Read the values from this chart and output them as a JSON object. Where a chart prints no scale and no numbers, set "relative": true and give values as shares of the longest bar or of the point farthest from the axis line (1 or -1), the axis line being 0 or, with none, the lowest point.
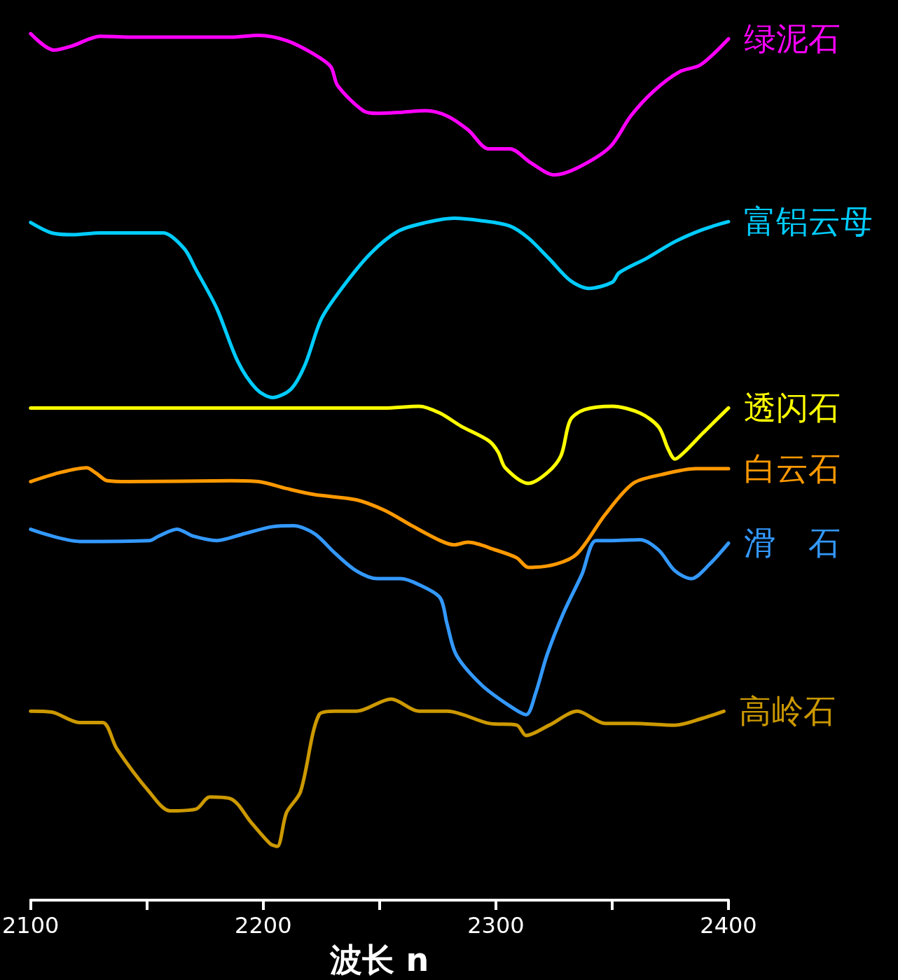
{
  "chart_data": {
    "type": "line",
    "relative": true,
    "xlabel": "波长 n",
    "xlim": [
      2100,
      2400
    ],
    "xticks": [
      2100,
      {
        "value": 2150,
        "label": null
      },
      2200,
      {
        "value": 2250,
        "label": null
      },
      2300,
      {
        "value": 2350,
        "label": null
      },
      2400
    ],
    "legend": false,
    "grid": false,
    "marker": "none",
    "line_style": "solid",
    "series": [
      {
        "name": "绿泥石",
        "color": "#ff00ff",
        "x": [
          2100,
          2110,
          2118,
          2130,
          2142,
          2186,
          2198,
          2210,
          2222,
          2229,
          2232,
          2243,
          2249,
          2258,
          2270,
          2279,
          2288,
          2297,
          2306,
          2315,
          2325,
          2335,
          2349,
          2358,
          2368,
          2379,
          2388,
          2400
        ],
        "values": [
          1.0,
          0.981,
          0.986,
          0.997,
          0.996,
          0.996,
          0.998,
          0.992,
          0.976,
          0.962,
          0.94,
          0.911,
          0.908,
          0.909,
          0.911,
          0.905,
          0.889,
          0.867,
          0.867,
          0.851,
          0.837,
          0.845,
          0.869,
          0.905,
          0.934,
          0.956,
          0.964,
          0.994
        ]
      },
      {
        "name": "富铝云母",
        "color": "#00ccff",
        "x": [
          2100,
          2109,
          2118,
          2130,
          2151,
          2157,
          2166,
          2171,
          2180,
          2189,
          2197,
          2204,
          2212,
          2218,
          2225,
          2234,
          2246,
          2258,
          2270,
          2282,
          2294,
          2306,
          2314,
          2323,
          2332,
          2340,
          2350,
          2353,
          2365,
          2377,
          2389,
          2400
        ],
        "values": [
          0.782,
          0.77,
          0.768,
          0.77,
          0.77,
          0.77,
          0.752,
          0.728,
          0.683,
          0.622,
          0.59,
          0.58,
          0.59,
          0.618,
          0.671,
          0.707,
          0.746,
          0.772,
          0.782,
          0.787,
          0.784,
          0.778,
          0.764,
          0.74,
          0.715,
          0.706,
          0.713,
          0.724,
          0.741,
          0.76,
          0.774,
          0.783
        ]
      },
      {
        "name": "透闪石",
        "color": "#ffff00",
        "x": [
          2100,
          2252,
          2267,
          2276,
          2285,
          2297,
          2301,
          2304,
          2314,
          2322,
          2328,
          2332,
          2338,
          2350,
          2362,
          2370,
          2374,
          2377,
          2381,
          2389,
          2400
        ],
        "values": [
          0.568,
          0.568,
          0.57,
          0.562,
          0.547,
          0.53,
          0.517,
          0.499,
          0.481,
          0.493,
          0.513,
          0.554,
          0.566,
          0.57,
          0.562,
          0.546,
          0.521,
          0.509,
          0.517,
          0.539,
          0.568
        ]
      },
      {
        "name": "白云石",
        "color": "#ff9900",
        "x": [
          2100,
          2112,
          2124,
          2128,
          2133,
          2142,
          2186,
          2198,
          2210,
          2222,
          2240,
          2252,
          2264,
          2276,
          2282,
          2288,
          2300,
          2309,
          2314,
          2326,
          2335,
          2347,
          2359,
          2371,
          2386,
          2400
        ],
        "values": [
          0.483,
          0.493,
          0.499,
          0.493,
          0.484,
          0.483,
          0.484,
          0.483,
          0.475,
          0.468,
          0.462,
          0.45,
          0.432,
          0.415,
          0.41,
          0.413,
          0.404,
          0.395,
          0.384,
          0.388,
          0.4,
          0.445,
          0.481,
          0.491,
          0.498,
          0.498
        ]
      },
      {
        "name": "滑　石",
        "color": "#3399ff",
        "x": [
          2100,
          2121,
          2151,
          2155,
          2163,
          2170,
          2180,
          2192,
          2204,
          2213,
          2222,
          2231,
          2240,
          2249,
          2259,
          2267,
          2276,
          2279,
          2283,
          2294,
          2306,
          2313,
          2317,
          2322,
          2329,
          2337,
          2343,
          2350,
          2362,
          2370,
          2377,
          2384,
          2392,
          2400
        ],
        "values": [
          0.428,
          0.414,
          0.415,
          0.42,
          0.428,
          0.42,
          0.415,
          0.423,
          0.431,
          0.432,
          0.423,
          0.4,
          0.38,
          0.371,
          0.371,
          0.364,
          0.349,
          0.319,
          0.283,
          0.248,
          0.224,
          0.214,
          0.238,
          0.283,
          0.331,
          0.376,
          0.415,
          0.415,
          0.416,
          0.404,
          0.38,
          0.371,
          0.388,
          0.412
        ]
      },
      {
        "name": "高岭石",
        "color": "#cc9900",
        "x": [
          2100,
          2109,
          2121,
          2131,
          2137,
          2151,
          2160,
          2171,
          2177,
          2186,
          2195,
          2203,
          2206,
          2210,
          2216,
          2224,
          2231,
          2240,
          2255,
          2267,
          2279,
          2297,
          2309,
          2313,
          2323,
          2335,
          2347,
          2359,
          2377,
          2389,
          2398
        ],
        "values": [
          0.218,
          0.217,
          0.205,
          0.205,
          0.175,
          0.125,
          0.103,
          0.105,
          0.119,
          0.117,
          0.089,
          0.065,
          0.062,
          0.101,
          0.125,
          0.214,
          0.218,
          0.218,
          0.232,
          0.218,
          0.218,
          0.204,
          0.202,
          0.19,
          0.202,
          0.218,
          0.204,
          0.204,
          0.202,
          0.21,
          0.218
        ]
      }
    ]
  }
}
